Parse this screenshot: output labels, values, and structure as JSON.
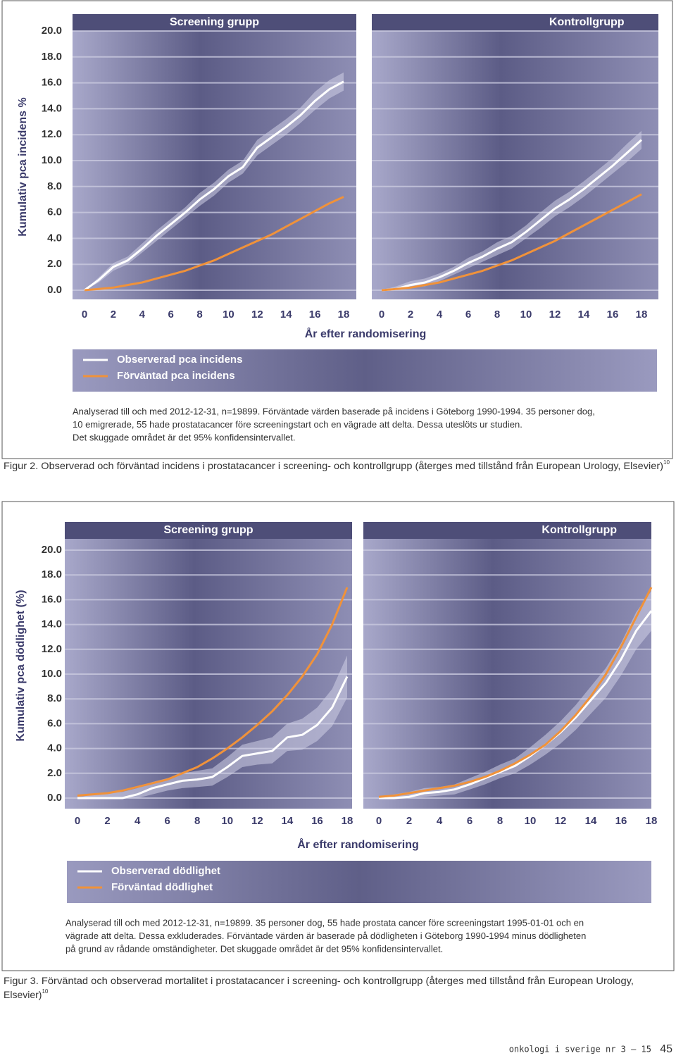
{
  "chart_data": [
    {
      "type": "line",
      "ylabel": "Kumulativ pca incidens %",
      "xlabel": "År efter randomisering",
      "ylim": [
        0,
        20
      ],
      "yticks": [
        {
          "value": 0,
          "label": "0.0"
        },
        {
          "value": 2,
          "label": "2.0"
        },
        {
          "value": 4,
          "label": "4.0"
        },
        {
          "value": 6,
          "label": "6.0"
        },
        {
          "value": 8,
          "label": "8.0"
        },
        {
          "value": 10,
          "label": "10.0"
        },
        {
          "value": 12,
          "label": "12.0"
        },
        {
          "value": 14,
          "label": "14.0"
        },
        {
          "value": 16,
          "label": "16.0"
        },
        {
          "value": 18,
          "label": "18.0"
        },
        {
          "value": 20,
          "label": "20.0"
        }
      ],
      "xlim": [
        0,
        18
      ],
      "x": [
        0,
        1,
        2,
        3,
        4,
        5,
        6,
        7,
        8,
        9,
        10,
        11,
        12,
        13,
        14,
        15,
        16,
        17,
        18
      ],
      "grid": true,
      "panels": [
        {
          "title": "Screening grupp",
          "xticks": [
            0,
            2,
            4,
            6,
            8,
            10,
            12,
            14,
            16,
            18
          ],
          "series": [
            {
              "name": "Observerad pca incidens",
              "color": "#ffffff",
              "values": [
                0,
                0.8,
                1.8,
                2.3,
                3.2,
                4.2,
                5.1,
                6.0,
                7.0,
                7.8,
                8.8,
                9.5,
                11.0,
                11.8,
                12.6,
                13.5,
                14.6,
                15.5,
                16.1
              ],
              "ci_lower": [
                0,
                0.6,
                1.5,
                2.0,
                2.9,
                3.8,
                4.7,
                5.6,
                6.5,
                7.3,
                8.3,
                9.0,
                10.4,
                11.2,
                12.0,
                12.9,
                13.9,
                14.8,
                15.4
              ],
              "ci_upper": [
                0,
                1.0,
                2.1,
                2.6,
                3.6,
                4.6,
                5.5,
                6.4,
                7.5,
                8.3,
                9.3,
                10.0,
                11.6,
                12.4,
                13.2,
                14.1,
                15.3,
                16.2,
                16.8
              ]
            },
            {
              "name": "Förväntad pca incidens",
              "color": "#f0923a",
              "values": [
                0,
                0.1,
                0.2,
                0.4,
                0.6,
                0.9,
                1.2,
                1.5,
                1.9,
                2.3,
                2.8,
                3.3,
                3.8,
                4.3,
                4.9,
                5.5,
                6.1,
                6.7,
                7.2
              ]
            }
          ]
        },
        {
          "title": "Kontrollgrupp",
          "xticks": [
            0,
            2,
            4,
            6,
            8,
            10,
            12,
            14,
            16,
            18
          ],
          "series": [
            {
              "name": "Observerad pca incidens",
              "color": "#ffffff",
              "values": [
                0,
                0.1,
                0.4,
                0.6,
                1.0,
                1.5,
                2.1,
                2.6,
                3.2,
                3.7,
                4.5,
                5.4,
                6.3,
                7.0,
                7.8,
                8.7,
                9.6,
                10.6,
                11.6
              ],
              "ci_lower": [
                0,
                0,
                0.2,
                0.3,
                0.7,
                1.2,
                1.7,
                2.2,
                2.7,
                3.2,
                4.0,
                4.8,
                5.7,
                6.4,
                7.2,
                8.1,
                9.0,
                9.9,
                10.9
              ],
              "ci_upper": [
                0,
                0.3,
                0.7,
                0.9,
                1.3,
                1.8,
                2.5,
                3.0,
                3.7,
                4.2,
                5.0,
                6.0,
                6.9,
                7.6,
                8.4,
                9.3,
                10.2,
                11.3,
                12.3
              ]
            },
            {
              "name": "Förväntad pca incidens",
              "color": "#f0923a",
              "values": [
                0,
                0.1,
                0.2,
                0.4,
                0.6,
                0.9,
                1.2,
                1.5,
                1.9,
                2.3,
                2.8,
                3.3,
                3.8,
                4.4,
                5.0,
                5.6,
                6.2,
                6.8,
                7.4
              ]
            }
          ]
        }
      ],
      "note": [
        "Analyserad till och med 2012-12-31, n=19899. Förväntade värden baserade på incidens i Göteborg 1990-1994. 35 personer dog,",
        "10 emigrerade, 55 hade prostatacancer före screeningstart och en vägrade att delta. Dessa uteslöts ur studien.",
        "Det skuggade området är det 95% konfidensintervallet."
      ],
      "caption": {
        "lines": [
          "Figur 2. Observerad och förväntad incidens i prostatacancer i screening- och kontrollgrupp (återges med tillstånd från European Urology, Elsevier)"
        ],
        "ref": "10"
      }
    },
    {
      "type": "line",
      "ylabel": "Kumulativ pca dödlighet (%)",
      "xlabel": "År efter randomisering",
      "ylim": [
        0,
        20
      ],
      "yticks": [
        {
          "value": 0,
          "label": "0.0"
        },
        {
          "value": 2,
          "label": "2.0"
        },
        {
          "value": 4,
          "label": "4.0"
        },
        {
          "value": 6,
          "label": "6.0"
        },
        {
          "value": 8,
          "label": "8.0"
        },
        {
          "value": 10,
          "label": "10.0"
        },
        {
          "value": 12,
          "label": "12.0"
        },
        {
          "value": 14,
          "label": "14.0"
        },
        {
          "value": 16,
          "label": "16.0"
        },
        {
          "value": 18,
          "label": "18.0"
        },
        {
          "value": 20,
          "label": "20.0"
        }
      ],
      "xlim": [
        0,
        18
      ],
      "x": [
        0,
        1,
        2,
        3,
        4,
        5,
        6,
        7,
        8,
        9,
        10,
        11,
        12,
        13,
        14,
        15,
        16,
        17,
        18
      ],
      "grid": true,
      "panels": [
        {
          "title": "Screening grupp",
          "xticks": [
            0,
            2,
            4,
            6,
            8,
            10,
            12,
            14,
            16,
            18
          ],
          "series": [
            {
              "name": "Observerad dödlighet",
              "color": "#ffffff",
              "values": [
                0,
                0,
                0,
                0,
                0.3,
                0.8,
                1.1,
                1.4,
                1.5,
                1.7,
                2.5,
                3.4,
                3.6,
                3.8,
                4.9,
                5.1,
                5.9,
                7.3,
                9.8
              ],
              "ci_lower": [
                0,
                0,
                0,
                0,
                0,
                0.3,
                0.6,
                0.8,
                0.9,
                1.0,
                1.7,
                2.5,
                2.7,
                2.8,
                3.8,
                3.9,
                4.6,
                5.8,
                8.1
              ],
              "ci_upper": [
                0,
                0.3,
                0.4,
                0.5,
                0.8,
                1.3,
                1.6,
                2.0,
                2.2,
                2.4,
                3.3,
                4.3,
                4.6,
                4.9,
                6.0,
                6.4,
                7.3,
                8.8,
                11.5
              ]
            },
            {
              "name": "Förväntad dödlighet",
              "color": "#f0923a",
              "values": [
                0.2,
                0.3,
                0.4,
                0.6,
                0.9,
                1.2,
                1.5,
                2.0,
                2.5,
                3.2,
                4.0,
                4.9,
                5.9,
                7.0,
                8.3,
                9.8,
                11.6,
                14.0,
                17.0
              ]
            }
          ]
        },
        {
          "title": "Kontrollgrupp",
          "xticks": [
            0,
            2,
            4,
            6,
            8,
            10,
            12,
            14,
            16,
            18
          ],
          "series": [
            {
              "name": "Observerad dödlighet",
              "color": "#ffffff",
              "values": [
                0,
                0,
                0.1,
                0.4,
                0.5,
                0.7,
                1.1,
                1.6,
                2.1,
                2.6,
                3.4,
                4.3,
                5.3,
                6.5,
                7.9,
                9.3,
                11.2,
                13.5,
                15.1
              ],
              "ci_lower": [
                0,
                0,
                0,
                0.1,
                0.2,
                0.3,
                0.7,
                1.1,
                1.6,
                2.0,
                2.7,
                3.5,
                4.4,
                5.5,
                6.8,
                8.1,
                9.9,
                12.0,
                13.5
              ],
              "ci_upper": [
                0,
                0.3,
                0.5,
                0.8,
                0.9,
                1.1,
                1.6,
                2.1,
                2.7,
                3.2,
                4.1,
                5.1,
                6.2,
                7.5,
                9.0,
                10.5,
                12.5,
                15.0,
                16.7
              ]
            },
            {
              "name": "Förväntad dödlighet",
              "color": "#f0923a",
              "values": [
                0.1,
                0.2,
                0.4,
                0.6,
                0.8,
                1.0,
                1.3,
                1.7,
                2.2,
                2.8,
                3.5,
                4.3,
                5.4,
                6.7,
                8.2,
                10.0,
                12.2,
                14.6,
                17.0
              ]
            }
          ]
        }
      ],
      "note": [
        "Analyserad till och med 2012-12-31, n=19899. 35 personer dog, 55 hade prostata cancer före screeningstart 1995-01-01 och en",
        "vägrade att delta. Dessa exkluderades. Förväntade värden är baserade på dödligheten i Göteborg 1990-1994 minus dödligheten",
        "på grund av  rådande omständigheter. Det skuggade området är det 95% konfidensintervallet."
      ],
      "caption": {
        "lines": [
          "Figur 3. Förväntad och observerad mortalitet i prostatacancer i screening- och kontrollgrupp (återges med tillstånd från European Urology,",
          "Elsevier)"
        ],
        "ref": "10"
      }
    }
  ],
  "footer": {
    "journal": "onkologi i sverige nr 3 – 15",
    "page": "45"
  }
}
